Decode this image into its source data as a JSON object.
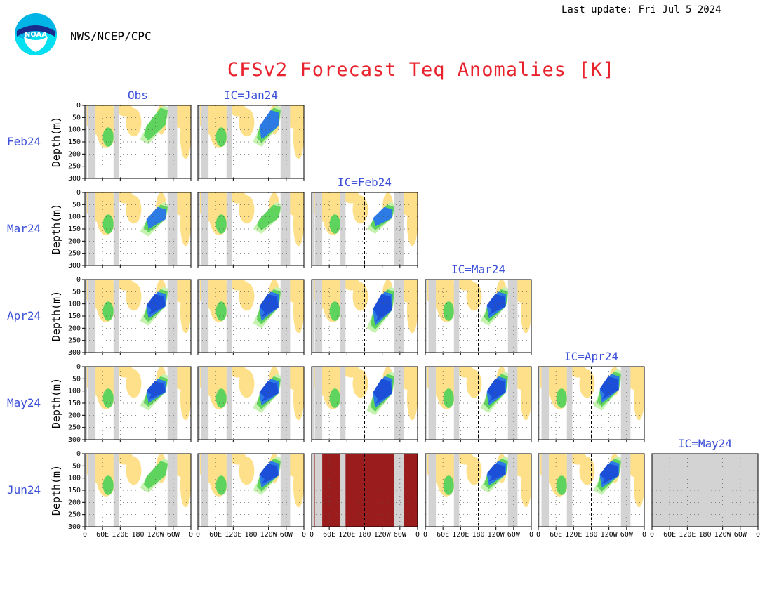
{
  "header": {
    "last_update": "Last update: Fri Jul 5 2024",
    "org": "NWS/NCEP/CPC",
    "logo_text": "NOAA",
    "title": "CFSv2 Forecast Teq Anomalies [K]"
  },
  "colors": {
    "title": "#e8232e",
    "labels": "#3b4fd8",
    "land_mask": "#d3d3d3",
    "warm_1": "#ffe08a",
    "warm_2": "#ffa500",
    "warm_3": "#f26a1b",
    "warm_4": "#cc2200",
    "warm_5": "#9b1c1c",
    "cool_1": "#c6f2b0",
    "cool_2": "#5ed45e",
    "cool_3": "#2c7be5",
    "cool_4": "#1c4fd8"
  },
  "chart_data": {
    "type": "heatmap",
    "description_fields": {
      "ylabel": "Depth(m)",
      "ylim": [
        0,
        300
      ],
      "yticks": [
        "0",
        "50",
        "100",
        "150",
        "200",
        "250",
        "300"
      ],
      "xticks": [
        "0",
        "60E",
        "120E",
        "180",
        "120W",
        "60W",
        "0"
      ]
    },
    "column_headers": [
      "Obs",
      "IC=Jan24",
      "IC=Feb24",
      "IC=Mar24",
      "IC=Apr24",
      "IC=May24"
    ],
    "row_labels": [
      "Feb24",
      "Mar24",
      "Apr24",
      "May24",
      "Jun24"
    ],
    "panels": [
      {
        "row": 0,
        "col": 0,
        "state": "data",
        "cool_depth": [
          0,
          140
        ],
        "cool_strength": 2
      },
      {
        "row": 0,
        "col": 1,
        "state": "data",
        "cool_depth": [
          0,
          150
        ],
        "cool_strength": 3
      },
      {
        "row": 1,
        "col": 0,
        "state": "data",
        "cool_depth": [
          40,
          160
        ],
        "cool_strength": 3
      },
      {
        "row": 1,
        "col": 1,
        "state": "data",
        "cool_depth": [
          40,
          150
        ],
        "cool_strength": 2
      },
      {
        "row": 1,
        "col": 2,
        "state": "data",
        "cool_depth": [
          40,
          150
        ],
        "cool_strength": 3
      },
      {
        "row": 2,
        "col": 0,
        "state": "data",
        "cool_depth": [
          30,
          170
        ],
        "cool_strength": 4
      },
      {
        "row": 2,
        "col": 1,
        "state": "data",
        "cool_depth": [
          30,
          180
        ],
        "cool_strength": 4
      },
      {
        "row": 2,
        "col": 2,
        "state": "data",
        "cool_depth": [
          30,
          200
        ],
        "cool_strength": 4
      },
      {
        "row": 2,
        "col": 3,
        "state": "data",
        "cool_depth": [
          30,
          170
        ],
        "cool_strength": 4
      },
      {
        "row": 3,
        "col": 0,
        "state": "data",
        "cool_depth": [
          30,
          160
        ],
        "cool_strength": 4
      },
      {
        "row": 3,
        "col": 1,
        "state": "data",
        "cool_depth": [
          30,
          170
        ],
        "cool_strength": 4
      },
      {
        "row": 3,
        "col": 2,
        "state": "data",
        "cool_depth": [
          20,
          180
        ],
        "cool_strength": 4
      },
      {
        "row": 3,
        "col": 3,
        "state": "data",
        "cool_depth": [
          20,
          170
        ],
        "cool_strength": 4
      },
      {
        "row": 3,
        "col": 4,
        "state": "data",
        "cool_depth": [
          10,
          160
        ],
        "cool_strength": 4
      },
      {
        "row": 4,
        "col": 0,
        "state": "data",
        "cool_depth": [
          20,
          140
        ],
        "cool_strength": 2
      },
      {
        "row": 4,
        "col": 1,
        "state": "data",
        "cool_depth": [
          10,
          150
        ],
        "cool_strength": 4
      },
      {
        "row": 4,
        "col": 2,
        "state": "saturated"
      },
      {
        "row": 4,
        "col": 3,
        "state": "data",
        "cool_depth": [
          10,
          140
        ],
        "cool_strength": 4
      },
      {
        "row": 4,
        "col": 4,
        "state": "data",
        "cool_depth": [
          10,
          150
        ],
        "cool_strength": 4
      },
      {
        "row": 4,
        "col": 5,
        "state": "empty"
      }
    ]
  }
}
